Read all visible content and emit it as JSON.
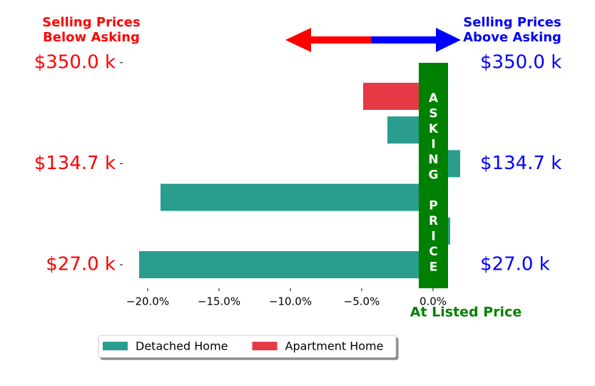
{
  "chart_data": {
    "type": "barh",
    "categories": [
      null,
      null,
      null,
      null,
      null,
      null
    ],
    "series": [
      {
        "name": "Detached Home",
        "color": "#2a9d8f",
        "values": [
          null,
          -3.2,
          1.9,
          -19.1,
          1.2,
          -20.6
        ]
      },
      {
        "name": "Apartment Home",
        "color": "#e63946",
        "values": [
          -4.9,
          null,
          null,
          null,
          null,
          null
        ]
      }
    ],
    "xlim": [
      -21.75,
      2.0
    ],
    "xticks": [
      {
        "value": -20,
        "label": "−20.0%"
      },
      {
        "value": -15,
        "label": "−15.0%"
      },
      {
        "value": -10,
        "label": "−10.0%"
      },
      {
        "value": -5,
        "label": "−5.0%"
      },
      {
        "value": 0,
        "label": "0.0%"
      }
    ],
    "ytick_labels": [
      "$350.0 k",
      "$134.7 k",
      "$27.0 k"
    ],
    "y2tick_labels": [
      "$350.0 k",
      "$134.7 k",
      "$27.0 k"
    ],
    "left_note": "Selling Prices\nBelow Asking",
    "right_note": "Selling Prices\nAbove Asking",
    "center_note": "ASKING PRICE",
    "bottom_note": "At Listed Price",
    "legend": "lower center"
  }
}
